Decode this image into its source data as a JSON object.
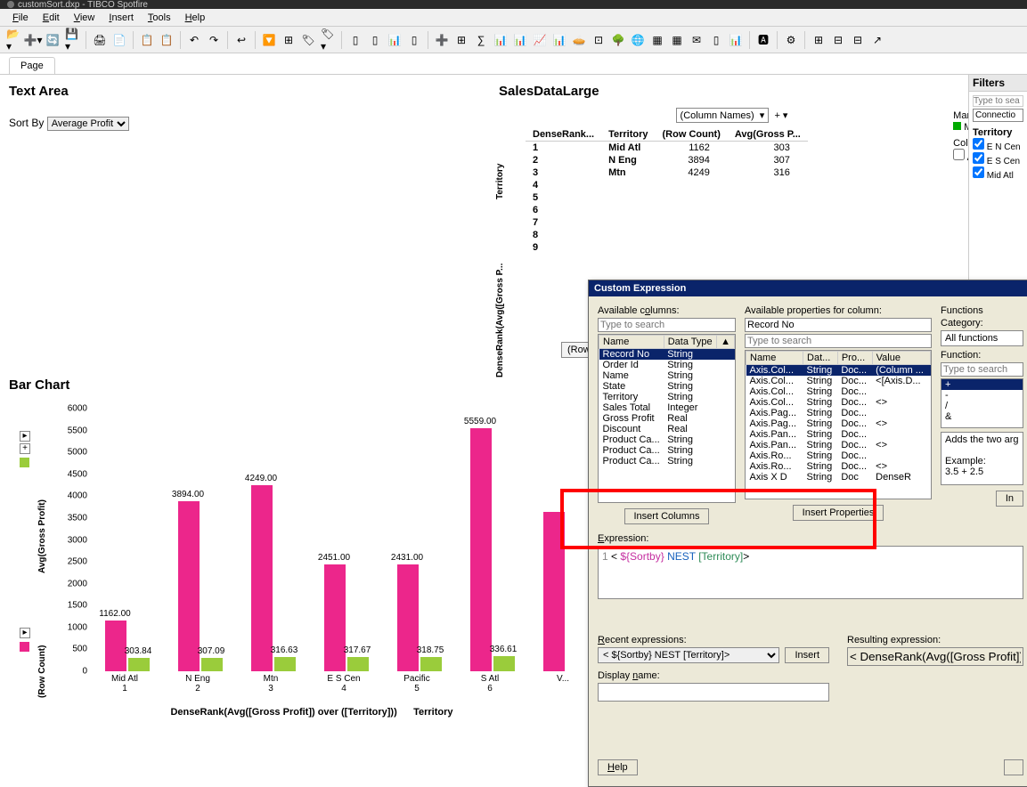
{
  "titlebar": "customSort.dxp - TIBCO Spotfire",
  "menus": [
    "File",
    "Edit",
    "View",
    "Insert",
    "Tools",
    "Help"
  ],
  "page_tab": "Page",
  "text_area": {
    "title": "Text Area",
    "sortby_label": "Sort By",
    "sortby_value": "Average Profit"
  },
  "sales": {
    "title": "SalesDataLarge",
    "colnames": "(Column Names)",
    "marking_label": "Marking:",
    "marking_name": "Marking",
    "colors_label": "Colors:",
    "allvalues": "All values",
    "headers": [
      "DenseRank...",
      "Territory",
      "(Row Count)",
      "Avg(Gross P..."
    ],
    "rows": [
      [
        "1",
        "Mid Atl",
        "1162",
        "303"
      ],
      [
        "2",
        "N Eng",
        "3894",
        "307"
      ],
      [
        "3",
        "Mtn",
        "4249",
        "316"
      ],
      [
        "4",
        "",
        "",
        ""
      ],
      [
        "5",
        "",
        "",
        ""
      ],
      [
        "6",
        "",
        "",
        ""
      ],
      [
        "7",
        "",
        "",
        ""
      ],
      [
        "8",
        "",
        "",
        ""
      ],
      [
        "9",
        "",
        "",
        ""
      ]
    ],
    "side_label_top": "Territory",
    "side_label_bottom": "DenseRank(Avg([Gross P...",
    "rowcount_btn": "(Row ..."
  },
  "filters": {
    "title": "Filters",
    "placeholder": "Type to sea",
    "dropdown": "Connectio",
    "territory_header": "Territory",
    "checks": [
      "E N Cen",
      "E S Cen",
      "Mid Atl"
    ]
  },
  "chart": {
    "title": "Bar Chart",
    "ymax": 6000,
    "ystep": 500,
    "x_title_left": "DenseRank(Avg([Gross Profit]) over ([Territory]))",
    "x_title_right": "Territory",
    "y_label_top": "Avg(Gross Profit)",
    "y_label_bottom": "(Row Count)",
    "color_rowcount": "#ec268b",
    "color_avg": "#9acc3b",
    "groups": [
      {
        "name": "Mid Atl",
        "rank": "1",
        "rowcount": 1162,
        "avg": 303.84
      },
      {
        "name": "N Eng",
        "rank": "2",
        "rowcount": 3894,
        "avg": 307.09
      },
      {
        "name": "Mtn",
        "rank": "3",
        "rowcount": 4249,
        "avg": 316.63
      },
      {
        "name": "E S Cen",
        "rank": "4",
        "rowcount": 2451,
        "avg": 317.67
      },
      {
        "name": "Pacific",
        "rank": "5",
        "rowcount": 2431,
        "avg": 318.75
      },
      {
        "name": "S Atl",
        "rank": "6",
        "rowcount": 5559,
        "avg": 336.61
      },
      {
        "name": "V...",
        "rank": "",
        "rowcount": 3650,
        "avg": 0
      }
    ]
  },
  "dialog": {
    "title": "Custom Expression",
    "avail_cols": "Available columns:",
    "avail_props": "Available properties for column:",
    "functions": "Functions",
    "category": "Category:",
    "allfn": "All functions",
    "function_lbl": "Function:",
    "placeholder_search": "Type to search",
    "record_no": "Record No",
    "col_headers": [
      "Name",
      "Data Type"
    ],
    "columns": [
      [
        "Record No",
        "String"
      ],
      [
        "Order Id",
        "String"
      ],
      [
        "Name",
        "String"
      ],
      [
        "State",
        "String"
      ],
      [
        "Territory",
        "String"
      ],
      [
        "Sales Total",
        "Integer"
      ],
      [
        "Gross Profit",
        "Real"
      ],
      [
        "Discount",
        "Real"
      ],
      [
        "Product Ca...",
        "String"
      ],
      [
        "Product Ca...",
        "String"
      ],
      [
        "Product Ca...",
        "String"
      ]
    ],
    "prop_headers": [
      "Name",
      "Dat...",
      "Pro...",
      "Value"
    ],
    "props": [
      [
        "Axis.Col...",
        "String",
        "Doc...",
        "(Column ..."
      ],
      [
        "Axis.Col...",
        "String",
        "Doc...",
        "<[Axis.D..."
      ],
      [
        "Axis.Col...",
        "String",
        "Doc...",
        ""
      ],
      [
        "Axis.Col...",
        "String",
        "Doc...",
        "<>"
      ],
      [
        "Axis.Pag...",
        "String",
        "Doc...",
        ""
      ],
      [
        "Axis.Pag...",
        "String",
        "Doc...",
        "<>"
      ],
      [
        "Axis.Pan...",
        "String",
        "Doc...",
        ""
      ],
      [
        "Axis.Pan...",
        "String",
        "Doc...",
        "<>"
      ],
      [
        "Axis.Ro...",
        "String",
        "Doc...",
        ""
      ],
      [
        "Axis.Ro...",
        "String",
        "Doc...",
        "<>"
      ],
      [
        "Axis X D",
        "String",
        "Doc",
        "DenseR"
      ]
    ],
    "fn_list": [
      "+",
      "-",
      "/",
      "&"
    ],
    "fn_desc": "Adds the two arg",
    "fn_example_l": "Example:",
    "fn_example": "3.5 + 2.5",
    "btn_ins_cols": "Insert Columns",
    "btn_ins_props": "Insert Properties",
    "btn_ins": "In",
    "expr_label": "Expression:",
    "expr_line": "< ${Sortby} NEST [Territory]>",
    "expr_parts": {
      "p1": "< ",
      "p2": "${Sortby}",
      "p3": " NEST ",
      "p4": "[Territory]",
      "p5": ">"
    },
    "recent_label": "Recent expressions:",
    "recent_value": "< ${Sortby} NEST [Territory]>",
    "insert_btn": "Insert",
    "resulting_label": "Resulting expression:",
    "resulting_value": "< DenseRank(Avg([Gross Profit]) over ([",
    "display_label": "Display name:",
    "help_btn": "Help"
  }
}
